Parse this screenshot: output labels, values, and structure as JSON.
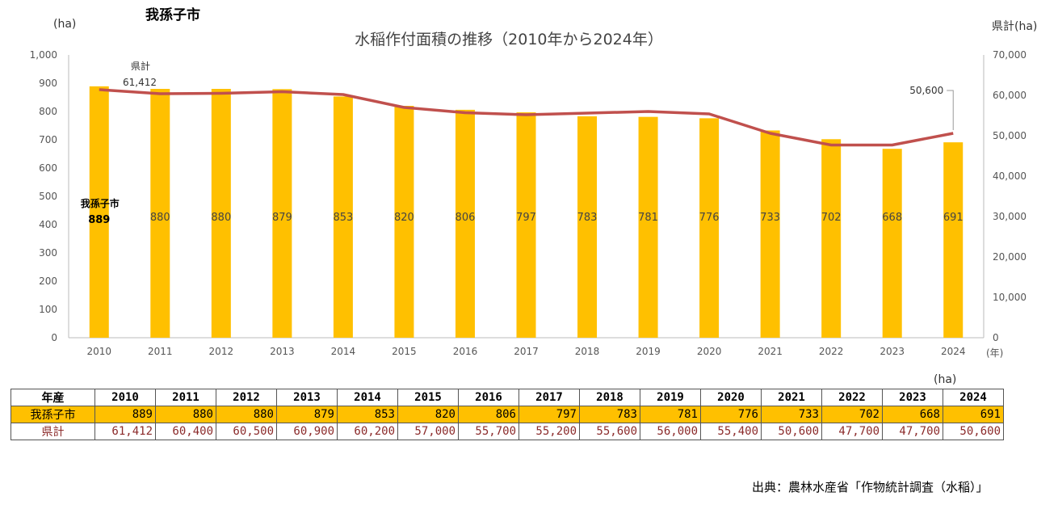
{
  "header": {
    "city_name": "我孫子市",
    "title": "水稲作付面積の推移（2010年から2024年）",
    "left_unit": "(ha)",
    "right_unit": "県計(ha)"
  },
  "chart_data": {
    "type": "bar",
    "title": "水稲作付面積の推移（2010年から2024年）",
    "categories": [
      "2010",
      "2011",
      "2012",
      "2013",
      "2014",
      "2015",
      "2016",
      "2017",
      "2018",
      "2019",
      "2020",
      "2021",
      "2022",
      "2023",
      "2024"
    ],
    "x_unit": "(年)",
    "series": [
      {
        "name": "我孫子市",
        "type": "bar",
        "axis": "left",
        "color": "#ffc000",
        "values": [
          889,
          880,
          880,
          879,
          853,
          820,
          806,
          797,
          783,
          781,
          776,
          733,
          702,
          668,
          691
        ]
      },
      {
        "name": "県計",
        "type": "line",
        "axis": "right",
        "color": "#c0504d",
        "values": [
          61412,
          60400,
          60500,
          60900,
          60200,
          57000,
          55700,
          55200,
          55600,
          56000,
          55400,
          50600,
          47700,
          47700,
          50600
        ]
      }
    ],
    "y_left": {
      "min": 0,
      "max": 1000,
      "ticks": [
        "0",
        "100",
        "200",
        "300",
        "400",
        "500",
        "600",
        "700",
        "800",
        "900",
        "1,000"
      ]
    },
    "y_right": {
      "min": 0,
      "max": 70000,
      "ticks": [
        "0",
        "10,000",
        "20,000",
        "30,000",
        "40,000",
        "50,000",
        "60,000",
        "70,000"
      ]
    },
    "bar_labels": [
      "889",
      "880",
      "880",
      "879",
      "853",
      "820",
      "806",
      "797",
      "783",
      "781",
      "776",
      "733",
      "702",
      "668",
      "691"
    ],
    "first_bar_callout": {
      "name": "我孫子市",
      "value": "889"
    },
    "line_callout_start": {
      "name": "県計",
      "value": "61,412"
    },
    "line_callout_end": {
      "value": "50,600"
    },
    "grid": false
  },
  "table": {
    "unit": "(ha)",
    "header_label": "年産",
    "years": [
      "2010",
      "2011",
      "2012",
      "2013",
      "2014",
      "2015",
      "2016",
      "2017",
      "2018",
      "2019",
      "2020",
      "2021",
      "2022",
      "2023",
      "2024"
    ],
    "rows": [
      {
        "label": "我孫子市",
        "values": [
          "889",
          "880",
          "880",
          "879",
          "853",
          "820",
          "806",
          "797",
          "783",
          "781",
          "776",
          "733",
          "702",
          "668",
          "691"
        ]
      },
      {
        "label": "県計",
        "values": [
          "61,412",
          "60,400",
          "60,500",
          "60,900",
          "60,200",
          "57,000",
          "55,700",
          "55,200",
          "55,600",
          "56,000",
          "55,400",
          "50,600",
          "47,700",
          "47,700",
          "50,600"
        ]
      }
    ]
  },
  "source": "出典：農林水産省「作物統計調査（水稲）」"
}
